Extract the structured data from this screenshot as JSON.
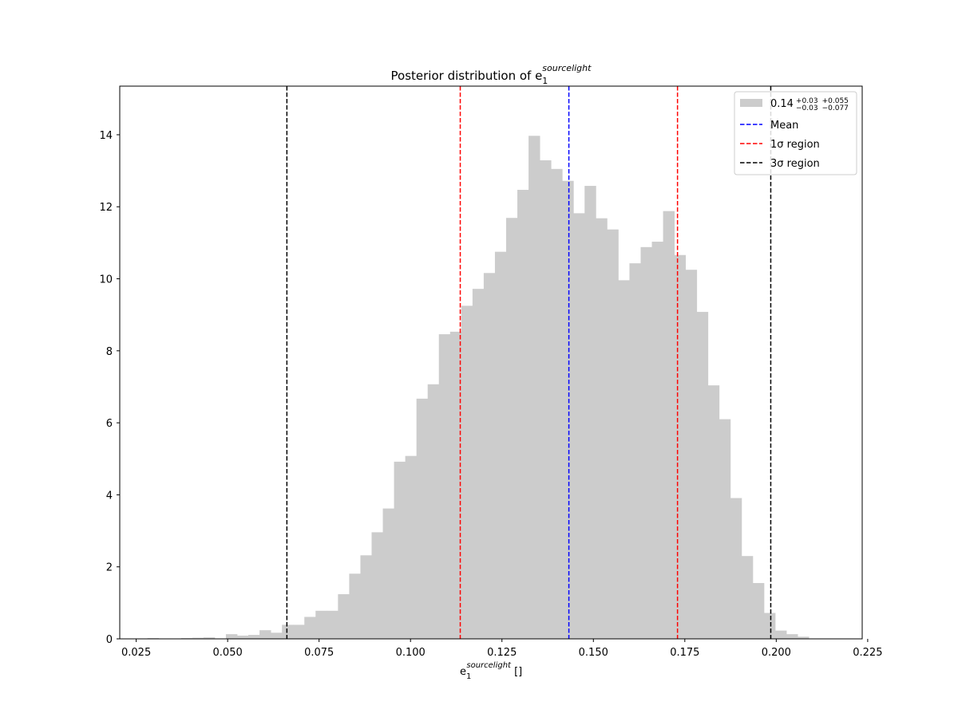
{
  "chart_data": {
    "type": "histogram",
    "title": {
      "main": "Posterior distribution of e",
      "sub": "1",
      "sup": "sourcelight"
    },
    "xlabel": {
      "main": "e",
      "sub": "1",
      "sup": "sourcelight",
      "unit": " []"
    },
    "ylabel": "",
    "xlim": [
      0.0205,
      0.2235
    ],
    "ylim": [
      0,
      15.35
    ],
    "xticks": [
      0.025,
      0.05,
      0.075,
      0.1,
      0.125,
      0.15,
      0.175,
      0.2,
      0.225
    ],
    "xtick_labels": [
      "0.025",
      "0.050",
      "0.075",
      "0.100",
      "0.125",
      "0.150",
      "0.175",
      "0.200",
      "0.225"
    ],
    "yticks": [
      0,
      2,
      4,
      6,
      8,
      10,
      12,
      14
    ],
    "ytick_labels": [
      "0",
      "2",
      "4",
      "6",
      "8",
      "10",
      "12",
      "14"
    ],
    "grid": false,
    "bin_start": 0.025,
    "bin_width": 0.003065,
    "bin_values": [
      0.01,
      0.02,
      0.0,
      0.0,
      0.02,
      0.03,
      0.04,
      0.0,
      0.13,
      0.09,
      0.11,
      0.24,
      0.17,
      0.39,
      0.39,
      0.61,
      0.78,
      0.78,
      1.24,
      1.81,
      2.32,
      2.96,
      3.62,
      4.92,
      5.08,
      6.67,
      7.07,
      8.46,
      8.53,
      9.25,
      9.72,
      10.16,
      10.75,
      11.69,
      12.47,
      13.97,
      13.29,
      13.05,
      12.72,
      11.82,
      12.58,
      11.68,
      11.37,
      9.96,
      10.43,
      10.88,
      11.03,
      11.88,
      10.66,
      10.25,
      9.08,
      7.04,
      6.1,
      3.91,
      2.3,
      1.55,
      0.72,
      0.23,
      0.13,
      0.06,
      0.01
    ],
    "bar_color": "#cccccc",
    "vlines": [
      {
        "name": "Mean",
        "x": 0.1433,
        "color": "#0000ff"
      },
      {
        "name": "1σ lower",
        "x": 0.1136,
        "color": "#ff0000"
      },
      {
        "name": "1σ upper",
        "x": 0.173,
        "color": "#ff0000"
      },
      {
        "name": "3σ lower",
        "x": 0.0662,
        "color": "#000000"
      },
      {
        "name": "3σ upper",
        "x": 0.1985,
        "color": "#000000"
      }
    ],
    "legend": {
      "placement": "top-right",
      "entries": [
        {
          "kind": "patch",
          "color": "#cccccc",
          "value": "0.14",
          "sup1": "+0.03",
          "sub1": "−0.03",
          "sup2": "+0.055",
          "sub2": "−0.077"
        },
        {
          "kind": "line",
          "color": "#0000ff",
          "label": "Mean"
        },
        {
          "kind": "line",
          "color": "#ff0000",
          "label": "1σ region"
        },
        {
          "kind": "line",
          "color": "#000000",
          "label": "3σ region"
        }
      ]
    }
  }
}
